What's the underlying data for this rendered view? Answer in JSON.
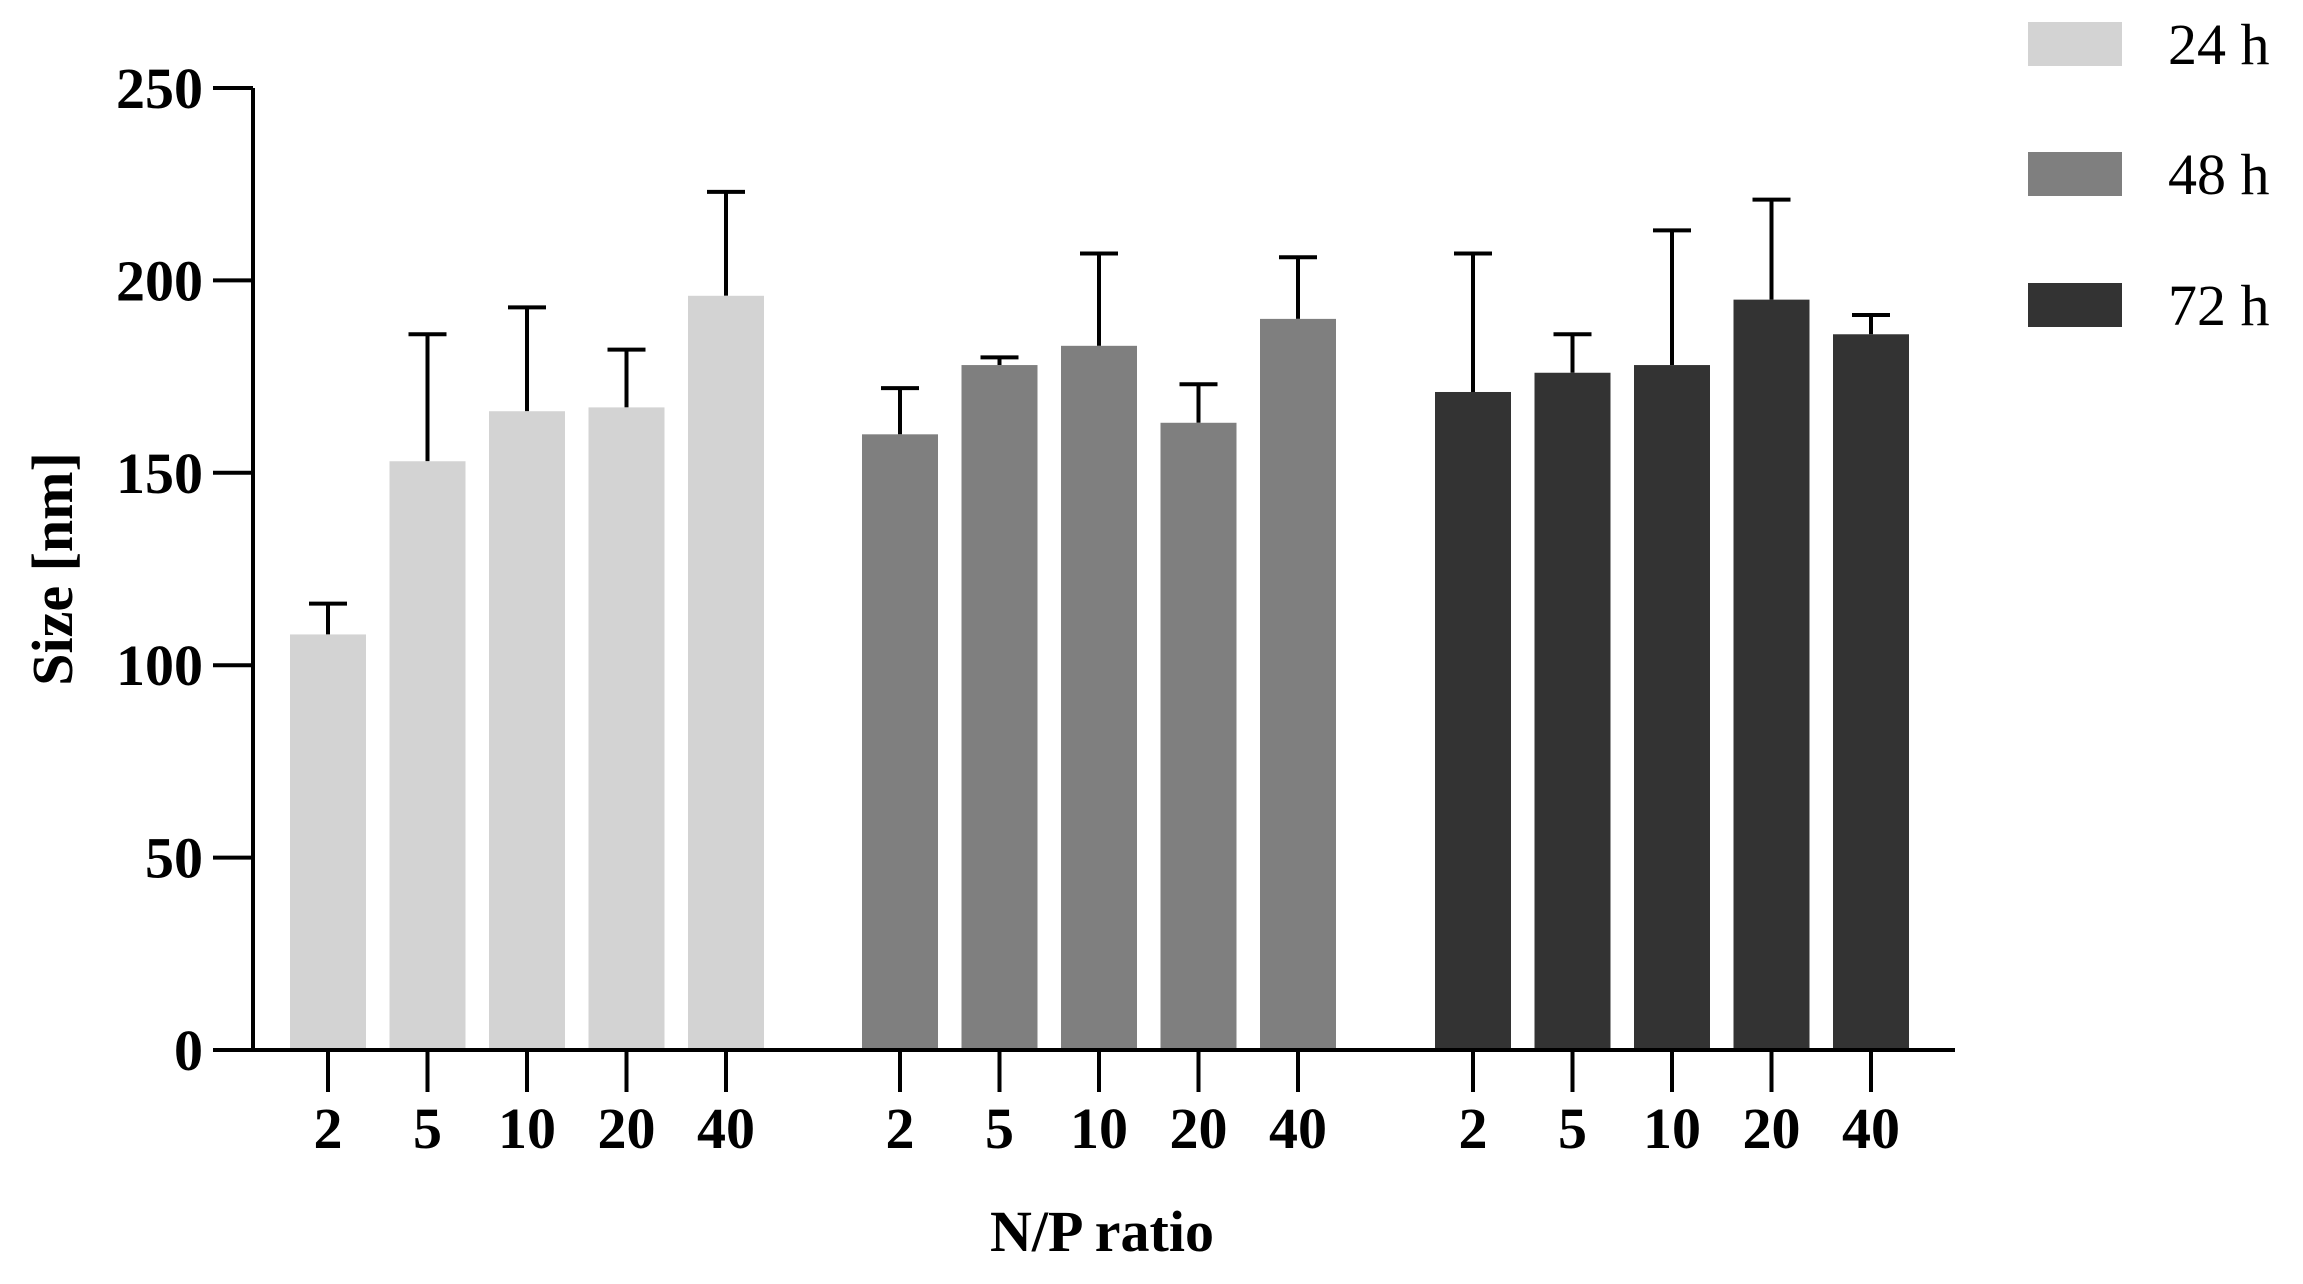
{
  "chart_data": {
    "type": "bar",
    "xlabel": "N/P ratio",
    "ylabel": "Size [nm]",
    "ylim": [
      0,
      250
    ],
    "yticks": [
      0,
      50,
      100,
      150,
      200,
      250
    ],
    "grid": false,
    "legend_position": "top-right",
    "categories": [
      "2",
      "5",
      "10",
      "20",
      "40"
    ],
    "series": [
      {
        "name": "24 h",
        "color": "#d3d3d3",
        "values": [
          108,
          153,
          166,
          167,
          196
        ],
        "errors": [
          8,
          33,
          27,
          15,
          27
        ]
      },
      {
        "name": "48 h",
        "color": "#7f7f7f",
        "values": [
          160,
          178,
          183,
          163,
          190
        ],
        "errors": [
          12,
          2,
          24,
          10,
          16
        ]
      },
      {
        "name": "72 h",
        "color": "#333333",
        "values": [
          171,
          176,
          178,
          195,
          186
        ],
        "errors": [
          36,
          10,
          35,
          26,
          5
        ]
      }
    ]
  }
}
